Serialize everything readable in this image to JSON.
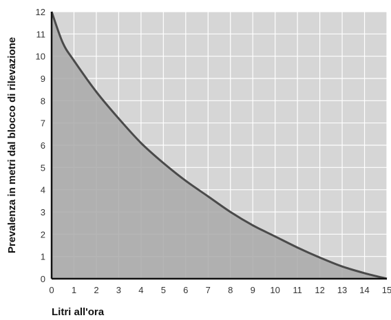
{
  "chart_data": {
    "type": "area",
    "title": "",
    "xlabel": "Litri all'ora",
    "ylabel": "Prevalenza in metri dal blocco di rilevazione",
    "xlim": [
      0,
      15
    ],
    "ylim": [
      0,
      12
    ],
    "x_ticks": [
      "0",
      "1",
      "2",
      "3",
      "4",
      "5",
      "6",
      "7",
      "8",
      "9",
      "10",
      "11",
      "12",
      "13",
      "14",
      "15"
    ],
    "y_ticks": [
      "0",
      "1",
      "2",
      "3",
      "4",
      "5",
      "6",
      "7",
      "8",
      "9",
      "10",
      "11",
      "12"
    ],
    "grid": true,
    "series": [
      {
        "x": [
          0,
          0.5,
          1,
          2,
          3,
          4,
          5,
          6,
          7,
          8,
          9,
          10,
          11,
          12,
          13,
          14,
          15
        ],
        "y": [
          12,
          10.6,
          9.8,
          8.4,
          7.2,
          6.1,
          5.2,
          4.4,
          3.7,
          3.0,
          2.4,
          1.9,
          1.4,
          0.95,
          0.55,
          0.25,
          0
        ]
      }
    ],
    "colors": {
      "plot_background": "#d6d6d6",
      "area_fill": "#a9a9a9",
      "line": "#4a4a4a",
      "grid": "#ffffff",
      "axis": "#111111"
    }
  }
}
